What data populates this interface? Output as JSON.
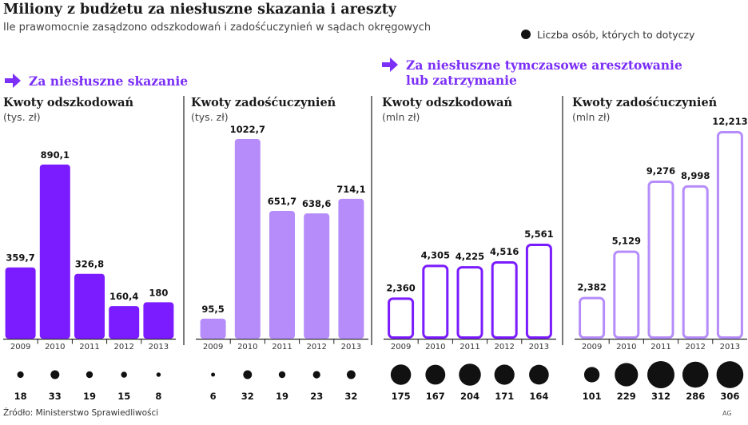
{
  "title": "Miliony z budżetu za niesłuszne skazania i areszty",
  "subtitle": "Ile prawomocnie zasądzono odszkodowań i zadośćuczynień w sądach okręgowych",
  "legend": "Liczba osób, których to dotyczy",
  "sections": {
    "left": "Za niesłuszne skazanie",
    "right_line1": "Za niesłuszne tymczasowe aresztowanie",
    "right_line2": "lub zatrzymanie"
  },
  "source": "Źródło: Ministerstwo Sprawiedliwości",
  "credit": "AG",
  "colors": {
    "accent": "#7b2ff7",
    "dark_bar": "#7b1bff",
    "light_bar": "#b58cfa",
    "outline_dark": "#7b1bff",
    "outline_light": "#b58cfa",
    "dot": "#111111"
  },
  "chart_data": [
    {
      "type": "bar",
      "section": "Za niesłuszne skazanie",
      "title": "Kwoty odszkodowań",
      "unit": "(tys. zł)",
      "style": "filled-dark",
      "categories": [
        "2009",
        "2010",
        "2011",
        "2012",
        "2013"
      ],
      "values": [
        359.7,
        890.1,
        326.8,
        160.4,
        180
      ],
      "labels": [
        "359,7",
        "890,1",
        "326,8",
        "160,4",
        "180"
      ],
      "people": [
        18,
        33,
        19,
        15,
        8
      ]
    },
    {
      "type": "bar",
      "section": "Za niesłuszne skazanie",
      "title": "Kwoty zadośćuczynień",
      "unit": "(tys. zł)",
      "style": "filled-light",
      "categories": [
        "2009",
        "2010",
        "2011",
        "2012",
        "2013"
      ],
      "values": [
        95.5,
        1022.7,
        651.7,
        638.6,
        714.1
      ],
      "labels": [
        "95,5",
        "1022,7",
        "651,7",
        "638,6",
        "714,1"
      ],
      "people": [
        6,
        32,
        19,
        23,
        32
      ]
    },
    {
      "type": "bar",
      "section": "Za niesłuszne tymczasowe aresztowanie lub zatrzymanie",
      "title": "Kwoty odszkodowań",
      "unit": "(mln zł)",
      "style": "outline-dark",
      "categories": [
        "2009",
        "2010",
        "2011",
        "2012",
        "2013"
      ],
      "values": [
        2.36,
        4.305,
        4.225,
        4.516,
        5.561
      ],
      "labels": [
        "2,360",
        "4,305",
        "4,225",
        "4,516",
        "5,561"
      ],
      "people": [
        175,
        167,
        204,
        171,
        164
      ]
    },
    {
      "type": "bar",
      "section": "Za niesłuszne tymczasowe aresztowanie lub zatrzymanie",
      "title": "Kwoty zadośćuczynień",
      "unit": "(mln zł)",
      "style": "outline-light",
      "categories": [
        "2009",
        "2010",
        "2011",
        "2012",
        "2013"
      ],
      "values": [
        2.382,
        5.129,
        9.276,
        8.998,
        12.213
      ],
      "labels": [
        "2,382",
        "5,129",
        "9,276",
        "8,998",
        "12,213"
      ],
      "people": [
        101,
        229,
        312,
        286,
        306
      ]
    }
  ]
}
